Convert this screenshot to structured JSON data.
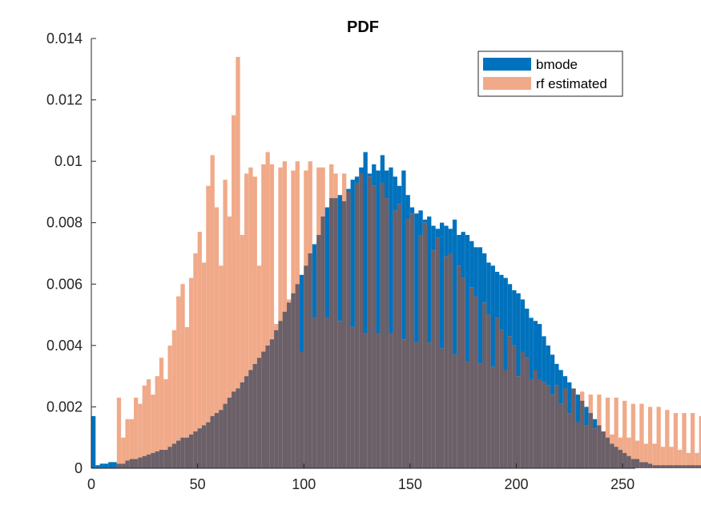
{
  "chart_data": {
    "type": "bar",
    "subtype": "overlapping-histogram",
    "title": "PDF",
    "xlabel": "",
    "ylabel": "",
    "xlim": [
      0,
      256
    ],
    "ylim": [
      0,
      0.014
    ],
    "x_ticks": [
      0,
      50,
      100,
      150,
      200,
      250
    ],
    "y_ticks": [
      0,
      0.002,
      0.004,
      0.006,
      0.008,
      0.01,
      0.012,
      0.014
    ],
    "x_tick_labels": [
      "0",
      "50",
      "100",
      "150",
      "200",
      "250"
    ],
    "y_tick_labels": [
      "0",
      "0.002",
      "0.004",
      "0.006",
      "0.008",
      "0.01",
      "0.012",
      "0.014"
    ],
    "bin_width": 2,
    "grid": false,
    "legend": {
      "position": "top-right",
      "entries": [
        "bmode",
        "rf estimated"
      ]
    },
    "overlap_color": "#6b5f68",
    "series": [
      {
        "name": "bmode",
        "color": "#0072bd",
        "bin_start": 0,
        "values": [
          0.0017,
          0.0001,
          0.00015,
          0.00015,
          0.0002,
          0.0002,
          0.00015,
          0.00015,
          0.00025,
          0.0003,
          0.0003,
          0.00035,
          0.0004,
          0.00045,
          0.0005,
          0.00055,
          0.0006,
          0.0006,
          0.0007,
          0.0008,
          0.0009,
          0.001,
          0.001,
          0.0011,
          0.0012,
          0.0013,
          0.0014,
          0.0015,
          0.0017,
          0.0018,
          0.0019,
          0.0021,
          0.0023,
          0.0025,
          0.0026,
          0.0028,
          0.003,
          0.0032,
          0.0034,
          0.0036,
          0.0038,
          0.004,
          0.0042,
          0.0045,
          0.0048,
          0.0051,
          0.0054,
          0.0057,
          0.006,
          0.0063,
          0.0066,
          0.007,
          0.0073,
          0.0076,
          0.0082,
          0.0085,
          0.0088,
          0.0088,
          0.0089,
          0.0087,
          0.0091,
          0.0094,
          0.0095,
          0.0098,
          0.0103,
          0.0096,
          0.0099,
          0.0097,
          0.0102,
          0.0097,
          0.0098,
          0.0095,
          0.0092,
          0.0097,
          0.0089,
          0.0085,
          0.0083,
          0.0084,
          0.0081,
          0.0082,
          0.0079,
          0.0078,
          0.008,
          0.0079,
          0.0078,
          0.0081,
          0.0076,
          0.0077,
          0.0076,
          0.0074,
          0.0072,
          0.0072,
          0.007,
          0.0067,
          0.0066,
          0.0064,
          0.0063,
          0.0062,
          0.006,
          0.0058,
          0.0057,
          0.0055,
          0.0052,
          0.0049,
          0.0048,
          0.0047,
          0.0043,
          0.004,
          0.0037,
          0.0034,
          0.0032,
          0.003,
          0.0028,
          0.0026,
          0.0024,
          0.0022,
          0.002,
          0.0018,
          0.0016,
          0.0014,
          0.0012,
          0.001,
          0.0008,
          0.0007,
          0.0006,
          0.0005,
          0.0004,
          0.0003,
          0.0003,
          0.0002,
          0.0002,
          0.00015,
          0.0001,
          0.0001,
          0.0001,
          0.0001,
          0.0001,
          0.0001,
          0.0001,
          0.0001,
          0.0001,
          0.0001,
          0.0001,
          0.0001,
          0.0001,
          0.0001,
          0.0001,
          0.0001
        ]
      },
      {
        "name": "rf estimated",
        "color": "#f0aa89",
        "bin_start": 12,
        "values": [
          0.0023,
          0.001,
          0.0016,
          0.0016,
          0.0023,
          0.0021,
          0.0027,
          0.0029,
          0.0024,
          0.003,
          0.0036,
          0.0029,
          0.004,
          0.0045,
          0.0056,
          0.006,
          0.0046,
          0.0062,
          0.007,
          0.0077,
          0.0067,
          0.0092,
          0.0102,
          0.0085,
          0.0066,
          0.0094,
          0.0082,
          0.0115,
          0.0134,
          0.0076,
          0.0096,
          0.0098,
          0.0095,
          0.0066,
          0.0099,
          0.0103,
          0.0099,
          0.0047,
          0.0098,
          0.01,
          0.0055,
          0.0097,
          0.01,
          0.0038,
          0.0097,
          0.01,
          0.0049,
          0.0098,
          0.0098,
          0.0049,
          0.0099,
          0.0096,
          0.0048,
          0.0096,
          0.009,
          0.0046,
          0.0093,
          0.0096,
          0.0044,
          0.0095,
          0.0092,
          0.0044,
          0.0093,
          0.0088,
          0.0044,
          0.0084,
          0.0086,
          0.0042,
          0.0081,
          0.0083,
          0.0041,
          0.0076,
          0.008,
          0.0041,
          0.0071,
          0.0075,
          0.0039,
          0.0069,
          0.007,
          0.0037,
          0.0066,
          0.0062,
          0.0035,
          0.0059,
          0.0056,
          0.0034,
          0.0054,
          0.005,
          0.0033,
          0.0049,
          0.0045,
          0.0032,
          0.0043,
          0.004,
          0.003,
          0.0038,
          0.0036,
          0.0029,
          0.0032,
          0.0029,
          0.0028,
          0.0027,
          0.0024,
          0.0027,
          0.0021,
          0.0026,
          0.0018,
          0.0026,
          0.0015,
          0.0025,
          0.0014,
          0.0024,
          0.0013,
          0.0024,
          0.0012,
          0.0023,
          0.0011,
          0.0023,
          0.001,
          0.0022,
          0.001,
          0.0021,
          0.0009,
          0.0021,
          0.0008,
          0.002,
          0.0008,
          0.002,
          0.0007,
          0.0019,
          0.0007,
          0.0018,
          0.0006,
          0.0018,
          0.0005,
          0.0018,
          0.0005,
          0.0017,
          0.0004,
          0.0017,
          0.0004,
          0.0016,
          0.0003,
          0.0016
        ]
      }
    ]
  }
}
